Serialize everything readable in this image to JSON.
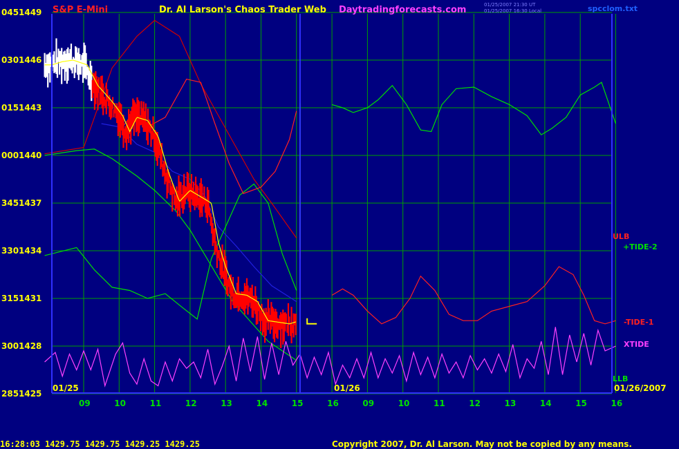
{
  "header": {
    "symbol": "S&P E-Mini",
    "title": "Dr. Al Larson's Chaos Trader Web",
    "site": "Daytradingforecasts.com",
    "timestamp_ut": "01/25/2007 21:30 UT",
    "timestamp_local": "01/25/2007 16:30 Local",
    "filename": "spcclom.txt"
  },
  "footer": {
    "quote": "16:28:03  1429.75 1429.75 1429.25 1429.25",
    "copyright": "Copyright 2007, Dr. Al Larson. May not be copied by any means."
  },
  "colors": {
    "background": "#000080",
    "grid": "#00a000",
    "axis": "#3030ff",
    "price_bar": "#ff0000",
    "price_bar_early": "#ffffff",
    "moving_average": "#ffff00",
    "ulb": "#d00000",
    "tide_plus": "#00e000",
    "tide_minus": "#ff2020",
    "xtide": "#ff40ff",
    "blue_line": "#2020e0"
  },
  "chart_data": {
    "type": "line",
    "x_unit": "hour",
    "days": [
      "01/25",
      "01/26"
    ],
    "end_date": "01/26/2007",
    "x_ticks": [
      "09",
      "10",
      "11",
      "12",
      "13",
      "14",
      "15",
      "16",
      "09",
      "10",
      "11",
      "12",
      "13",
      "14",
      "15",
      "16"
    ],
    "y_ticks": [
      {
        "left": "285",
        "right": "1425"
      },
      {
        "left": "300",
        "right": "1428"
      },
      {
        "left": "315",
        "right": "1431"
      },
      {
        "left": "330",
        "right": "1434"
      },
      {
        "left": "345",
        "right": "1437"
      },
      {
        "left": "000",
        "right": "1440"
      },
      {
        "left": "015",
        "right": "1443"
      },
      {
        "left": "030",
        "right": "1446"
      },
      {
        "left": "045",
        "right": "1449"
      }
    ],
    "ylim": [
      1425,
      1449
    ],
    "legend": [
      "ULB",
      "+TIDE-2",
      "-TIDE-1",
      "XTIDE",
      "LLB"
    ],
    "series": [
      {
        "name": "ULB",
        "points": [
          [
            0,
            1440.1
          ],
          [
            1.0,
            1440.5
          ],
          [
            1.8,
            1445.5
          ],
          [
            2.5,
            1447.5
          ],
          [
            3.0,
            1448.5
          ],
          [
            3.7,
            1447.5
          ],
          [
            4.3,
            1444.5
          ],
          [
            4.8,
            1442.5
          ],
          [
            5.3,
            1440.5
          ],
          [
            5.8,
            1438.5
          ],
          [
            6.3,
            1437.0
          ],
          [
            7.0,
            1434.8
          ]
        ]
      },
      {
        "name": "+TIDE-2",
        "points": [
          [
            0,
            1440.0
          ],
          [
            0.8,
            1440.3
          ],
          [
            1.3,
            1440.4
          ],
          [
            1.8,
            1439.8
          ],
          [
            2.5,
            1438.7
          ],
          [
            3.0,
            1437.8
          ],
          [
            3.6,
            1436.5
          ],
          [
            4.0,
            1435.3
          ],
          [
            4.4,
            1433.8
          ],
          [
            4.8,
            1432.3
          ],
          [
            5.2,
            1430.8
          ],
          [
            5.6,
            1429.8
          ],
          [
            6.2,
            1428.3
          ],
          [
            7.0,
            1427.1
          ]
        ]
      },
      {
        "name": "blue",
        "points": [
          [
            1.5,
            1442.0
          ],
          [
            2.0,
            1441.8
          ],
          [
            2.5,
            1440.7
          ],
          [
            3.0,
            1440.2
          ],
          [
            3.5,
            1439.0
          ],
          [
            4.0,
            1438.5
          ],
          [
            4.4,
            1437.5
          ],
          [
            4.8,
            1435.5
          ],
          [
            5.3,
            1434.3
          ],
          [
            5.8,
            1433.0
          ],
          [
            6.3,
            1431.8
          ],
          [
            7.0,
            1430.8
          ]
        ]
      },
      {
        "name": "-TIDE-1",
        "points": [
          [
            0,
            1433.7
          ],
          [
            0.8,
            1434.2
          ],
          [
            1.3,
            1432.8
          ],
          [
            1.8,
            1431.7
          ],
          [
            2.3,
            1431.5
          ],
          [
            2.8,
            1431.0
          ],
          [
            3.3,
            1431.3
          ],
          [
            3.8,
            1430.4
          ],
          [
            4.2,
            1429.7
          ],
          [
            4.6,
            1433.5
          ],
          [
            5.0,
            1435.5
          ],
          [
            5.4,
            1437.5
          ],
          [
            5.8,
            1438.2
          ],
          [
            6.2,
            1437.0
          ],
          [
            6.6,
            1433.8
          ],
          [
            7.0,
            1431.5
          ]
        ]
      },
      {
        "name": "red-2",
        "points": [
          [
            2.0,
            1441.5
          ],
          [
            2.4,
            1442.7
          ],
          [
            2.8,
            1441.8
          ],
          [
            3.3,
            1442.4
          ],
          [
            3.9,
            1444.8
          ],
          [
            4.3,
            1444.6
          ],
          [
            4.7,
            1442.0
          ],
          [
            5.1,
            1439.5
          ],
          [
            5.5,
            1437.6
          ],
          [
            6.0,
            1438.0
          ],
          [
            6.4,
            1439.0
          ],
          [
            6.8,
            1441.0
          ],
          [
            7.0,
            1442.8
          ]
        ]
      },
      {
        "name": "+TIDE-2 01/26",
        "points": [
          [
            8.0,
            1443.2
          ],
          [
            8.3,
            1443.0
          ],
          [
            8.6,
            1442.7
          ],
          [
            9.0,
            1443.0
          ],
          [
            9.3,
            1443.5
          ],
          [
            9.7,
            1444.4
          ],
          [
            10.1,
            1443.2
          ],
          [
            10.5,
            1441.6
          ],
          [
            10.8,
            1441.5
          ],
          [
            11.1,
            1443.2
          ],
          [
            11.5,
            1444.2
          ],
          [
            12.0,
            1444.3
          ],
          [
            12.5,
            1443.7
          ],
          [
            13.0,
            1443.2
          ],
          [
            13.5,
            1442.5
          ],
          [
            13.9,
            1441.3
          ],
          [
            14.2,
            1441.7
          ],
          [
            14.6,
            1442.4
          ],
          [
            15.0,
            1443.8
          ],
          [
            15.4,
            1444.3
          ],
          [
            15.6,
            1444.6
          ],
          [
            16.0,
            1442.0
          ]
        ]
      },
      {
        "name": "-TIDE-1 01/26",
        "points": [
          [
            8.0,
            1431.2
          ],
          [
            8.3,
            1431.6
          ],
          [
            8.6,
            1431.2
          ],
          [
            9.0,
            1430.2
          ],
          [
            9.4,
            1429.4
          ],
          [
            9.8,
            1429.8
          ],
          [
            10.2,
            1431.0
          ],
          [
            10.5,
            1432.4
          ],
          [
            10.9,
            1431.5
          ],
          [
            11.3,
            1430.0
          ],
          [
            11.7,
            1429.6
          ],
          [
            12.1,
            1429.6
          ],
          [
            12.5,
            1430.2
          ],
          [
            13.0,
            1430.5
          ],
          [
            13.5,
            1430.8
          ],
          [
            14.0,
            1431.8
          ],
          [
            14.4,
            1433.0
          ],
          [
            14.8,
            1432.5
          ],
          [
            15.1,
            1431.2
          ],
          [
            15.4,
            1429.6
          ],
          [
            15.7,
            1429.4
          ],
          [
            16.0,
            1429.6
          ]
        ]
      },
      {
        "name": "XTIDE",
        "points": [
          [
            0,
            1427.0
          ],
          [
            0.2,
            1427.6
          ],
          [
            0.4,
            1426.1
          ],
          [
            0.6,
            1427.5
          ],
          [
            0.8,
            1426.5
          ],
          [
            1.0,
            1427.7
          ],
          [
            1.2,
            1426.5
          ],
          [
            1.4,
            1427.8
          ],
          [
            1.6,
            1425.5
          ],
          [
            1.9,
            1427.5
          ],
          [
            2.1,
            1428.2
          ],
          [
            2.3,
            1426.3
          ],
          [
            2.5,
            1425.6
          ],
          [
            2.7,
            1427.2
          ],
          [
            2.9,
            1425.8
          ],
          [
            3.1,
            1425.5
          ],
          [
            3.3,
            1427.0
          ],
          [
            3.5,
            1425.8
          ],
          [
            3.7,
            1427.2
          ],
          [
            3.9,
            1426.6
          ],
          [
            4.1,
            1427.0
          ],
          [
            4.3,
            1426.0
          ],
          [
            4.5,
            1427.8
          ],
          [
            4.7,
            1425.6
          ],
          [
            4.9,
            1426.7
          ],
          [
            5.1,
            1428.0
          ],
          [
            5.3,
            1425.8
          ],
          [
            5.5,
            1428.5
          ],
          [
            5.7,
            1426.4
          ],
          [
            5.9,
            1428.6
          ],
          [
            6.1,
            1425.9
          ],
          [
            6.3,
            1428.2
          ],
          [
            6.5,
            1426.2
          ],
          [
            6.7,
            1428.3
          ],
          [
            6.9,
            1426.8
          ],
          [
            7.1,
            1427.5
          ],
          [
            7.3,
            1426.0
          ],
          [
            7.5,
            1427.3
          ],
          [
            7.7,
            1426.2
          ],
          [
            7.9,
            1427.6
          ],
          [
            8.1,
            1425.6
          ],
          [
            8.3,
            1426.8
          ],
          [
            8.5,
            1426.0
          ],
          [
            8.7,
            1427.2
          ],
          [
            8.9,
            1426.0
          ],
          [
            9.1,
            1427.6
          ],
          [
            9.3,
            1426.0
          ],
          [
            9.5,
            1427.2
          ],
          [
            9.7,
            1426.3
          ],
          [
            9.9,
            1427.4
          ],
          [
            10.1,
            1425.8
          ],
          [
            10.3,
            1427.6
          ],
          [
            10.5,
            1426.2
          ],
          [
            10.7,
            1427.3
          ],
          [
            10.9,
            1426.0
          ],
          [
            11.1,
            1427.5
          ],
          [
            11.3,
            1426.3
          ],
          [
            11.5,
            1427.0
          ],
          [
            11.7,
            1426.0
          ],
          [
            11.9,
            1427.4
          ],
          [
            12.1,
            1426.5
          ],
          [
            12.3,
            1427.2
          ],
          [
            12.5,
            1426.3
          ],
          [
            12.7,
            1427.5
          ],
          [
            12.9,
            1426.4
          ],
          [
            13.1,
            1428.1
          ],
          [
            13.3,
            1426.0
          ],
          [
            13.5,
            1427.2
          ],
          [
            13.7,
            1426.6
          ],
          [
            13.9,
            1428.3
          ],
          [
            14.1,
            1426.2
          ],
          [
            14.3,
            1429.2
          ],
          [
            14.5,
            1426.2
          ],
          [
            14.7,
            1428.7
          ],
          [
            14.9,
            1427.0
          ],
          [
            15.1,
            1428.8
          ],
          [
            15.3,
            1426.8
          ],
          [
            15.5,
            1429.0
          ],
          [
            15.7,
            1427.7
          ],
          [
            16.0,
            1428.0
          ]
        ]
      }
    ],
    "price_path": [
      [
        0,
        1445.7
      ],
      [
        0.3,
        1445.9
      ],
      [
        0.6,
        1446.0
      ],
      [
        1.0,
        1445.7
      ],
      [
        1.3,
        1444.4
      ],
      [
        1.7,
        1443.4
      ],
      [
        2.0,
        1442.5
      ],
      [
        2.2,
        1441.5
      ],
      [
        2.4,
        1442.4
      ],
      [
        2.7,
        1442.2
      ],
      [
        3.0,
        1441.2
      ],
      [
        3.3,
        1438.9
      ],
      [
        3.6,
        1437.1
      ],
      [
        3.9,
        1437.8
      ],
      [
        4.2,
        1437.4
      ],
      [
        4.5,
        1437.0
      ],
      [
        4.7,
        1434.5
      ],
      [
        4.9,
        1433.0
      ],
      [
        5.2,
        1431.3
      ],
      [
        5.5,
        1431.2
      ],
      [
        5.8,
        1430.8
      ],
      [
        6.1,
        1429.6
      ],
      [
        6.4,
        1429.5
      ],
      [
        6.7,
        1429.4
      ],
      [
        7.0,
        1429.6
      ]
    ],
    "white_until": 1.25,
    "last_close": 1429.4
  }
}
